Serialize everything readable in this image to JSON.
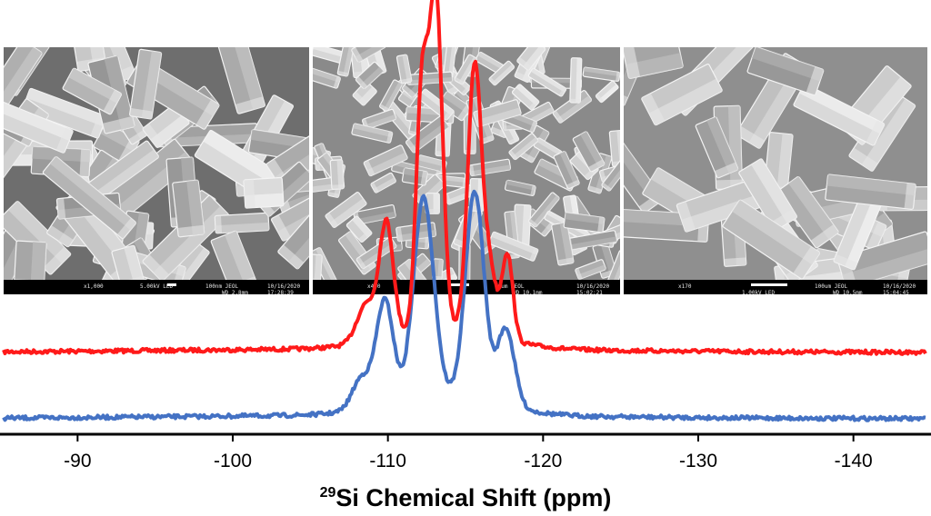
{
  "chart_data": {
    "type": "line",
    "title": "",
    "xlabel_superscript": "29",
    "xlabel": "Si Chemical Shift (ppm)",
    "ylabel": "",
    "xlim": [
      -85,
      -145
    ],
    "x_ticks": [
      "-90",
      "-100",
      "-110",
      "-120",
      "-130",
      "-140"
    ],
    "x_tick_values": [
      -90,
      -100,
      -110,
      -120,
      -130,
      -140
    ],
    "grid": false,
    "legend": "none",
    "series": [
      {
        "name": "red spectrum",
        "color": "#ff1a1a",
        "baseline": 0.0,
        "peaks": [
          {
            "x": -108.6,
            "height": 0.22,
            "width": 0.6
          },
          {
            "x": -109.9,
            "height": 0.66,
            "width": 0.45
          },
          {
            "x": -112.2,
            "height": 1.38,
            "width": 0.38
          },
          {
            "x": -113.1,
            "height": 1.9,
            "width": 0.42
          },
          {
            "x": -115.6,
            "height": 1.55,
            "width": 0.45
          },
          {
            "x": -116.6,
            "height": 0.35,
            "width": 0.4
          },
          {
            "x": -117.7,
            "height": 0.5,
            "width": 0.35
          }
        ]
      },
      {
        "name": "blue spectrum",
        "color": "#4472c4",
        "baseline": 0.0,
        "peaks": [
          {
            "x": -108.3,
            "height": 0.18,
            "width": 0.6
          },
          {
            "x": -109.8,
            "height": 0.6,
            "width": 0.55
          },
          {
            "x": -112.3,
            "height": 1.15,
            "width": 0.65
          },
          {
            "x": -115.6,
            "height": 1.2,
            "width": 0.6
          },
          {
            "x": -117.6,
            "height": 0.45,
            "width": 0.55
          }
        ]
      }
    ]
  },
  "sem_images": [
    {
      "name": "sem-image-1",
      "mag": "x1,000",
      "voltage": "5.00kV LED",
      "scale": "100nm JEOL",
      "wd": "WD 2.8mm",
      "date": "10/16/2020",
      "time": "17:28:39"
    },
    {
      "name": "sem-image-2",
      "mag": "x400",
      "voltage": "",
      "scale": "10um JEOL",
      "wd": "WD 10.1mm",
      "date": "10/16/2020",
      "time": "15:02:21"
    },
    {
      "name": "sem-image-3",
      "mag": "x170",
      "voltage": "1.00kV LED",
      "scale": "100um JEOL",
      "wd": "WD 10.5mm",
      "date": "10/16/2020",
      "time": "15:04:45"
    }
  ]
}
